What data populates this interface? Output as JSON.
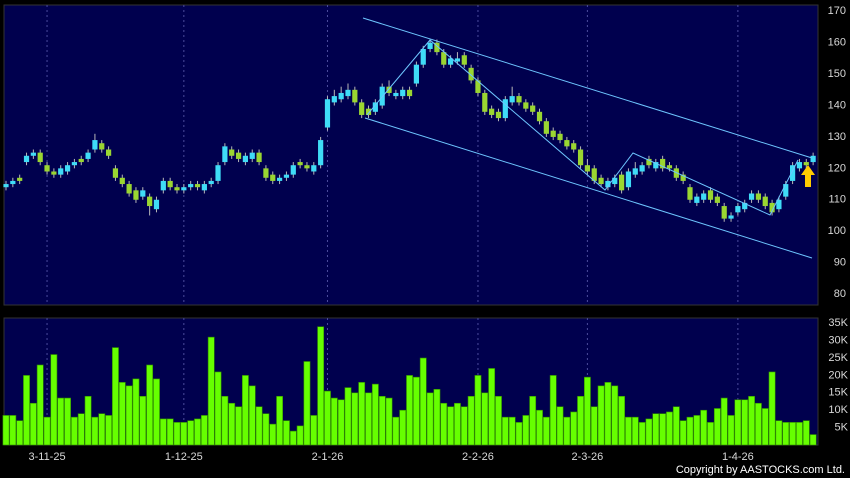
{
  "chart_data": {
    "type": "candlestick",
    "categories": [
      null,
      null,
      null,
      null,
      null,
      null,
      "3-11-25",
      null,
      null,
      null,
      null,
      null,
      null,
      null,
      null,
      null,
      null,
      null,
      null,
      null,
      null,
      null,
      null,
      null,
      null,
      null,
      "1-12-25",
      null,
      null,
      null,
      null,
      null,
      null,
      null,
      null,
      null,
      null,
      null,
      null,
      null,
      null,
      null,
      null,
      null,
      null,
      null,
      null,
      "2-1-26",
      null,
      null,
      null,
      null,
      null,
      null,
      null,
      null,
      null,
      null,
      null,
      null,
      null,
      null,
      null,
      null,
      null,
      null,
      null,
      null,
      null,
      "2-2-26",
      null,
      null,
      null,
      null,
      null,
      null,
      null,
      null,
      null,
      null,
      null,
      null,
      null,
      null,
      null,
      "2-3-26",
      null,
      null,
      null,
      null,
      null,
      null,
      null,
      null,
      null,
      null,
      null,
      null,
      null,
      null,
      null,
      null,
      null,
      null,
      null,
      null,
      null,
      "1-4-26",
      null,
      null,
      null,
      null,
      null,
      null,
      null,
      null,
      null,
      null,
      null
    ],
    "open": [
      114,
      115,
      117,
      122,
      124,
      125,
      121,
      119,
      118,
      119,
      121,
      123,
      123,
      126,
      128,
      126,
      120,
      117,
      115,
      113,
      111,
      111,
      107,
      113,
      116,
      114,
      113,
      114,
      115,
      113,
      115,
      116,
      122,
      126,
      125,
      122,
      123,
      125,
      120,
      118,
      116,
      117,
      118,
      122,
      121,
      119,
      121,
      133,
      141,
      142,
      143,
      145,
      141,
      139,
      138,
      140,
      146,
      143,
      143,
      145,
      147,
      153,
      158,
      160,
      157,
      153,
      154,
      156,
      152,
      148,
      144,
      139,
      138,
      136,
      141,
      143,
      141,
      140,
      138,
      135,
      132,
      131,
      129,
      128,
      126,
      121,
      120,
      117,
      114,
      115,
      118,
      114,
      118,
      119,
      123,
      120,
      123,
      121,
      120,
      118,
      114,
      109,
      110,
      113,
      111,
      108,
      104,
      106,
      107,
      110,
      112,
      111,
      109,
      107,
      111,
      116,
      120,
      122,
      122
    ],
    "high": [
      116,
      117,
      118,
      125,
      126,
      126,
      122,
      120,
      121,
      122,
      123,
      124,
      126,
      131,
      129,
      127,
      121,
      118,
      116,
      114,
      114,
      112,
      111,
      117,
      117,
      115,
      115,
      116,
      116,
      116,
      117,
      122,
      128,
      127,
      126,
      125,
      126,
      126,
      121,
      119,
      118,
      119,
      122,
      123,
      122,
      122,
      130,
      143,
      145,
      146,
      147,
      146,
      142,
      140,
      142,
      147,
      148,
      145,
      146,
      146,
      154,
      159,
      161,
      161,
      158,
      156,
      157,
      157,
      153,
      149,
      145,
      140,
      139,
      143,
      146,
      144,
      142,
      141,
      139,
      136,
      133,
      132,
      130,
      129,
      127,
      123,
      121,
      118,
      117,
      118,
      119,
      120,
      122,
      122,
      124,
      123,
      124,
      122,
      121,
      119,
      115,
      112,
      113,
      114,
      112,
      109,
      106,
      109,
      110,
      113,
      113,
      112,
      110,
      111,
      116,
      122,
      123,
      123,
      125
    ],
    "low": [
      113,
      114,
      115,
      121,
      123,
      121,
      118,
      117,
      117,
      118,
      120,
      121,
      122,
      125,
      125,
      123,
      116,
      114,
      111,
      109,
      110,
      105,
      106,
      112,
      113,
      112,
      112,
      113,
      113,
      112,
      114,
      115,
      121,
      123,
      122,
      121,
      122,
      121,
      116,
      115,
      115,
      116,
      117,
      120,
      119,
      118,
      120,
      132,
      140,
      141,
      142,
      140,
      136,
      136,
      137,
      139,
      143,
      142,
      142,
      142,
      146,
      152,
      157,
      156,
      152,
      152,
      153,
      152,
      147,
      143,
      137,
      136,
      135,
      135,
      140,
      140,
      138,
      137,
      134,
      130,
      129,
      128,
      126,
      125,
      120,
      118,
      115,
      114,
      113,
      114,
      112,
      113,
      117,
      118,
      120,
      119,
      119,
      119,
      116,
      115,
      109,
      108,
      109,
      109,
      108,
      103,
      103,
      105,
      106,
      109,
      109,
      107,
      105,
      106,
      110,
      115,
      119,
      120,
      121
    ],
    "close": [
      115,
      116,
      116,
      124,
      125,
      122,
      119,
      118,
      120,
      121,
      122,
      122,
      125,
      129,
      126,
      124,
      117,
      115,
      112,
      110,
      113,
      108,
      110,
      116,
      114,
      113,
      114,
      115,
      114,
      115,
      116,
      121,
      127,
      124,
      123,
      124,
      125,
      122,
      117,
      116,
      117,
      118,
      121,
      121,
      120,
      121,
      129,
      142,
      143,
      144,
      145,
      141,
      137,
      137,
      141,
      146,
      144,
      144,
      145,
      143,
      153,
      158,
      160,
      157,
      153,
      155,
      155,
      153,
      148,
      144,
      138,
      137,
      136,
      142,
      143,
      141,
      139,
      138,
      135,
      131,
      130,
      129,
      127,
      126,
      121,
      119,
      116,
      115,
      116,
      117,
      113,
      119,
      120,
      121,
      121,
      122,
      120,
      120,
      117,
      116,
      110,
      111,
      112,
      110,
      109,
      104,
      105,
      108,
      109,
      112,
      110,
      108,
      106,
      110,
      115,
      121,
      122,
      121,
      124
    ],
    "volume": [
      8500,
      8500,
      7000,
      20000,
      12000,
      23000,
      8000,
      26000,
      13500,
      13500,
      8000,
      9000,
      14000,
      8000,
      9000,
      8500,
      28000,
      18000,
      17000,
      19000,
      14000,
      23000,
      19000,
      7500,
      7500,
      6500,
      6500,
      7000,
      7500,
      8500,
      31000,
      21000,
      14000,
      12000,
      11000,
      20000,
      17000,
      11000,
      9000,
      6000,
      14000,
      7000,
      4000,
      5500,
      24000,
      8500,
      34000,
      15500,
      13500,
      13000,
      16500,
      15000,
      18000,
      15000,
      17500,
      14000,
      13500,
      8000,
      10000,
      20000,
      19500,
      25000,
      15000,
      16000,
      12000,
      11000,
      12000,
      11000,
      14000,
      20000,
      15000,
      22000,
      14000,
      8000,
      8000,
      6500,
      8500,
      14000,
      10000,
      8000,
      20000,
      11000,
      8000,
      9500,
      14000,
      19500,
      11000,
      17000,
      18000,
      17000,
      14000,
      8000,
      8000,
      6500,
      7500,
      9000,
      9000,
      9500,
      11000,
      7000,
      8000,
      8500,
      10000,
      6500,
      10500,
      13500,
      8500,
      13000,
      13000,
      14000,
      12000,
      10500,
      21000,
      7000,
      6500,
      6500,
      6500,
      7000,
      3000
    ],
    "up_color": "#3fdcf7",
    "down_color": "#9ad631",
    "volume_color": "#66ff00",
    "ylim": [
      76.5,
      172
    ],
    "yticks": [
      80,
      90,
      100,
      110,
      120,
      130,
      140,
      150,
      160,
      170
    ],
    "y2lim": [
      0,
      36500
    ],
    "y2ticks": [
      {
        "value": 5000,
        "label": "5K"
      },
      {
        "value": 10000,
        "label": "10K"
      },
      {
        "value": 15000,
        "label": "15K"
      },
      {
        "value": 20000,
        "label": "20K"
      },
      {
        "value": 25000,
        "label": "25K"
      },
      {
        "value": 30000,
        "label": "30K"
      },
      {
        "value": 35000,
        "label": "35K"
      }
    ],
    "grid": true,
    "copyright": "Copyright by AASTOCKS.com Ltd."
  }
}
